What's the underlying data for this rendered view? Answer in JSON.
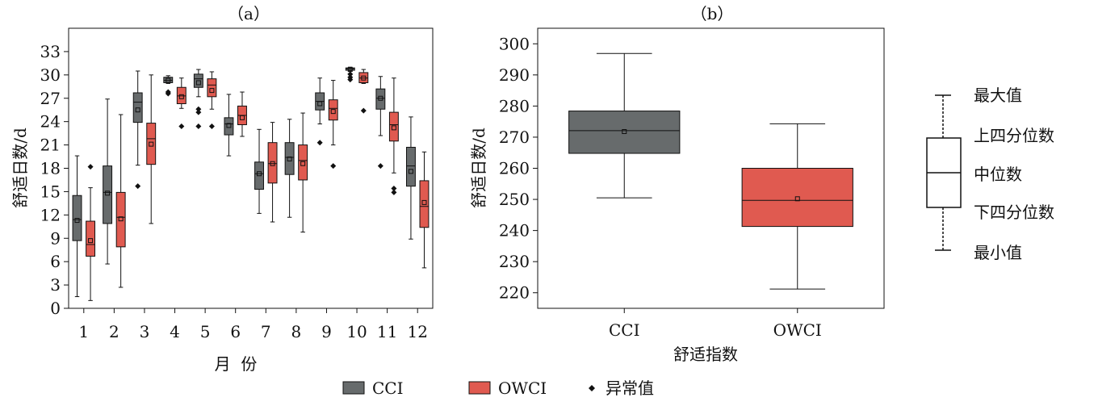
{
  "colors": {
    "cci": "#676b6c",
    "owci": "#e05a50",
    "line": "#111111"
  },
  "legend": {
    "cci": "CCI",
    "owci": "OWCI",
    "outlier": "异常值"
  },
  "chart_data": [
    {
      "id": "a",
      "type": "boxplot",
      "title": "（a）",
      "xlabel": "月  份",
      "ylabel": "舒适日数/d",
      "ylim": [
        0,
        36
      ],
      "yticks": [
        0,
        3,
        6,
        9,
        12,
        15,
        18,
        21,
        24,
        27,
        30,
        33
      ],
      "categories": [
        "1",
        "2",
        "3",
        "4",
        "5",
        "6",
        "7",
        "8",
        "9",
        "10",
        "11",
        "12"
      ],
      "series": [
        {
          "name": "CCI",
          "boxes": [
            {
              "min": 1.5,
              "q1": 8.7,
              "median": 11.4,
              "q3": 14.5,
              "max": 19.6,
              "mean": 11.3,
              "outliers": []
            },
            {
              "min": 5.7,
              "q1": 10.9,
              "median": 14.9,
              "q3": 18.3,
              "max": 26.9,
              "mean": 14.8,
              "outliers": []
            },
            {
              "min": 18.4,
              "q1": 23.9,
              "median": 26.5,
              "q3": 27.7,
              "max": 30.5,
              "mean": 25.5,
              "outliers": [
                15.7
              ]
            },
            {
              "min": 28.9,
              "q1": 29.0,
              "median": 29.3,
              "q3": 29.7,
              "max": 29.9,
              "mean": 29.3,
              "outliers": [
                27.6,
                27.8
              ]
            },
            {
              "min": 27.2,
              "q1": 28.4,
              "median": 29.5,
              "q3": 30.1,
              "max": 30.7,
              "mean": 29.0,
              "outliers": [
                25.6,
                25.2,
                23.4
              ]
            },
            {
              "min": 19.6,
              "q1": 22.3,
              "median": 23.7,
              "q3": 24.5,
              "max": 27.5,
              "mean": 23.5,
              "outliers": []
            },
            {
              "min": 12.2,
              "q1": 15.3,
              "median": 17.3,
              "q3": 18.8,
              "max": 23.0,
              "mean": 17.3,
              "outliers": []
            },
            {
              "min": 11.7,
              "q1": 17.2,
              "median": 19.4,
              "q3": 21.3,
              "max": 24.3,
              "mean": 19.2,
              "outliers": []
            },
            {
              "min": 23.7,
              "q1": 25.5,
              "median": 26.6,
              "q3": 27.7,
              "max": 29.6,
              "mean": 26.3,
              "outliers": [
                21.3
              ]
            },
            {
              "min": 30.5,
              "q1": 30.6,
              "median": 30.8,
              "q3": 30.9,
              "max": 31.0,
              "mean": 30.7,
              "outliers": [
                30.1,
                29.7,
                29.4
              ]
            },
            {
              "min": 22.2,
              "q1": 25.6,
              "median": 27.0,
              "q3": 28.2,
              "max": 29.8,
              "mean": 27.0,
              "outliers": [
                18.3
              ]
            },
            {
              "min": 8.9,
              "q1": 15.7,
              "median": 18.3,
              "q3": 20.7,
              "max": 24.6,
              "mean": 17.6,
              "outliers": []
            }
          ]
        },
        {
          "name": "OWCI",
          "boxes": [
            {
              "min": 1.0,
              "q1": 6.7,
              "median": 8.2,
              "q3": 11.2,
              "max": 15.5,
              "mean": 8.7,
              "outliers": [
                18.2
              ]
            },
            {
              "min": 2.7,
              "q1": 7.9,
              "median": 11.7,
              "q3": 14.9,
              "max": 24.9,
              "mean": 11.5,
              "outliers": []
            },
            {
              "min": 10.9,
              "q1": 18.5,
              "median": 21.8,
              "q3": 23.8,
              "max": 30.0,
              "mean": 21.1,
              "outliers": []
            },
            {
              "min": 25.7,
              "q1": 26.3,
              "median": 27.3,
              "q3": 28.4,
              "max": 29.6,
              "mean": 27.2,
              "outliers": [
                23.4
              ]
            },
            {
              "min": 25.6,
              "q1": 27.2,
              "median": 28.7,
              "q3": 29.5,
              "max": 30.4,
              "mean": 28.0,
              "outliers": [
                23.4
              ]
            },
            {
              "min": 22.1,
              "q1": 23.6,
              "median": 24.8,
              "q3": 26.0,
              "max": 27.8,
              "mean": 24.5,
              "outliers": []
            },
            {
              "min": 11.1,
              "q1": 16.1,
              "median": 18.6,
              "q3": 21.3,
              "max": 23.9,
              "mean": 18.6,
              "outliers": []
            },
            {
              "min": 9.8,
              "q1": 16.5,
              "median": 19.0,
              "q3": 21.0,
              "max": 25.1,
              "mean": 18.6,
              "outliers": []
            },
            {
              "min": 21.0,
              "q1": 24.2,
              "median": 25.7,
              "q3": 26.8,
              "max": 29.3,
              "mean": 25.3,
              "outliers": [
                18.3
              ]
            },
            {
              "min": 28.9,
              "q1": 29.0,
              "median": 29.6,
              "q3": 30.3,
              "max": 30.7,
              "mean": 29.6,
              "outliers": [
                25.4
              ]
            },
            {
              "min": 17.4,
              "q1": 21.5,
              "median": 23.6,
              "q3": 25.2,
              "max": 29.6,
              "mean": 23.2,
              "outliers": [
                15.4,
                14.9
              ]
            },
            {
              "min": 5.2,
              "q1": 10.4,
              "median": 13.1,
              "q3": 16.4,
              "max": 20.1,
              "mean": 13.6,
              "outliers": []
            }
          ]
        }
      ]
    },
    {
      "id": "b",
      "type": "boxplot",
      "title": "（b）",
      "xlabel": "舒适指数",
      "ylabel": "舒适日数/d",
      "ylim": [
        215,
        305
      ],
      "yticks": [
        220,
        230,
        240,
        250,
        260,
        270,
        280,
        290,
        300
      ],
      "categories": [
        "CCI",
        "OWCI"
      ],
      "boxes": [
        {
          "min": 250.5,
          "q1": 264.8,
          "median": 272.1,
          "q3": 278.4,
          "max": 296.9,
          "mean": 271.8,
          "outliers": []
        },
        {
          "min": 221.2,
          "q1": 241.3,
          "median": 249.7,
          "q3": 260.0,
          "max": 274.3,
          "mean": 250.2,
          "outliers": []
        }
      ]
    }
  ],
  "key": {
    "max": "最大值",
    "q3": "上四分位数",
    "median": "中位数",
    "q1": "下四分位数",
    "min": "最小值"
  }
}
